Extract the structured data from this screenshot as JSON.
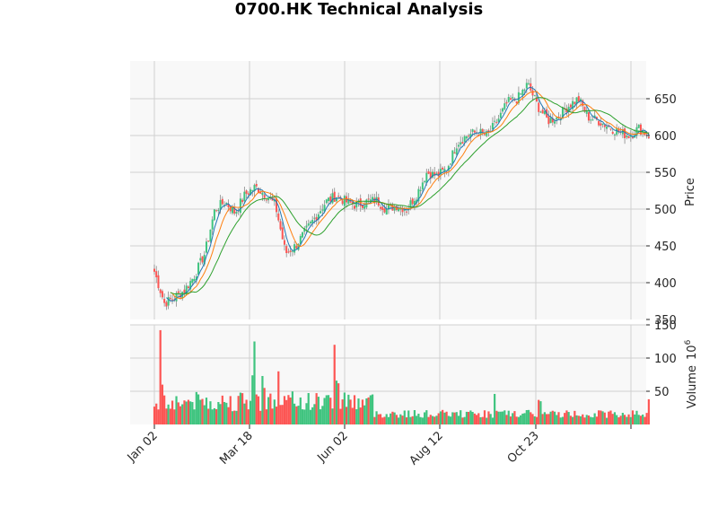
{
  "title": "0700.HK Technical Analysis",
  "colors": {
    "up": "#3fc47f",
    "down": "#fd5553",
    "ma_fast": "#1f77b4",
    "ma_mid": "#ff7f0e",
    "ma_slow": "#2ca02c",
    "panel_bg": "#f8f8f8",
    "grid": "#d0d0d0"
  },
  "chart_data": {
    "type": "candlestick",
    "title": "0700.HK Technical Analysis",
    "panels": [
      {
        "name": "price",
        "ylabel": "Price",
        "yticks": [
          350,
          400,
          450,
          500,
          550,
          600,
          650
        ],
        "ylim": [
          350,
          700
        ],
        "series": [
          "OHLC candles",
          "MA (short, blue)",
          "MA (medium, orange)",
          "MA (long, green)"
        ],
        "close_path": [
          [
            "Jan 02",
            415
          ],
          [
            "Jan 09",
            372
          ],
          [
            "Jan 16",
            380
          ],
          [
            "Jan 23",
            390
          ],
          [
            "Jan 30",
            410
          ],
          [
            "Feb 06",
            440
          ],
          [
            "Feb 13",
            500
          ],
          [
            "Feb 20",
            510
          ],
          [
            "Feb 27",
            495
          ],
          [
            "Mar 05",
            520
          ],
          [
            "Mar 12",
            530
          ],
          [
            "Mar 18",
            520
          ],
          [
            "Mar 25",
            505
          ],
          [
            "Apr 02",
            440
          ],
          [
            "Apr 09",
            450
          ],
          [
            "Apr 16",
            470
          ],
          [
            "Apr 23",
            490
          ],
          [
            "Apr 30",
            510
          ],
          [
            "May 07",
            518
          ],
          [
            "May 14",
            510
          ],
          [
            "May 21",
            505
          ],
          [
            "Jun 02",
            510
          ],
          [
            "Jun 09",
            512
          ],
          [
            "Jun 16",
            500
          ],
          [
            "Jun 23",
            505
          ],
          [
            "Jul 02",
            500
          ],
          [
            "Jul 09",
            520
          ],
          [
            "Jul 16",
            550
          ],
          [
            "Jul 23",
            545
          ],
          [
            "Jul 30",
            555
          ],
          [
            "Aug 06",
            590
          ],
          [
            "Aug 12",
            600
          ],
          [
            "Aug 19",
            605
          ],
          [
            "Aug 26",
            600
          ],
          [
            "Sep 02",
            620
          ],
          [
            "Sep 09",
            645
          ],
          [
            "Sep 16",
            650
          ],
          [
            "Sep 23",
            670
          ],
          [
            "Sep 30",
            640
          ],
          [
            "Oct 07",
            620
          ],
          [
            "Oct 14",
            625
          ],
          [
            "Oct 23",
            640
          ],
          [
            "Oct 30",
            650
          ],
          [
            "Nov 06",
            625
          ],
          [
            "Nov 13",
            620
          ],
          [
            "Nov 20",
            612
          ],
          [
            "Nov 27",
            605
          ],
          [
            "Dec 04",
            600
          ],
          [
            "Dec 11",
            610
          ],
          [
            "Dec 18",
            600
          ]
        ]
      },
      {
        "name": "volume",
        "ylabel": "Volume  10^6",
        "yticks": [
          50,
          100,
          150
        ],
        "ylim": [
          0,
          150
        ],
        "spikes": [
          [
            "Jan 04",
            142
          ],
          [
            "Jan 05",
            95
          ],
          [
            "Feb 14",
            125
          ],
          [
            "Mar 01",
            80
          ],
          [
            "Apr 02",
            120
          ],
          [
            "Jul 24",
            46
          ],
          [
            "Aug 12",
            37
          ],
          [
            "Oct 03",
            38
          ]
        ]
      }
    ],
    "xticks": [
      "Jan 02",
      "Mar 18",
      "Jun 02",
      "Aug 12",
      "Oct 23",
      ""
    ],
    "xlabel": ""
  },
  "axes": {
    "price_ticks": [
      "350",
      "400",
      "450",
      "500",
      "550",
      "600",
      "650"
    ],
    "volume_ticks": [
      "50",
      "100",
      "150"
    ],
    "price_label": "Price",
    "volume_label": "Volume",
    "volume_exp": "10",
    "volume_exp_sup": "6",
    "x_ticks": [
      "Jan 02",
      "Mar 18",
      "Jun 02",
      "Aug 12",
      "Oct 23"
    ]
  }
}
